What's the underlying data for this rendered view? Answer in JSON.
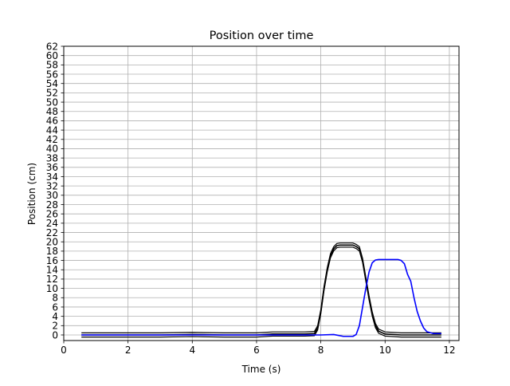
{
  "chart_data": {
    "type": "line",
    "title": "Position over time",
    "xlabel": "Time (s)",
    "ylabel": "Position (cm)",
    "xlim": [
      0,
      12.3
    ],
    "ylim": [
      -1.2,
      62
    ],
    "xticks": [
      0,
      2,
      4,
      6,
      8,
      10,
      12
    ],
    "yticks": [
      0,
      2,
      4,
      6,
      8,
      10,
      12,
      14,
      16,
      18,
      20,
      22,
      24,
      26,
      28,
      30,
      32,
      34,
      36,
      38,
      40,
      42,
      44,
      46,
      48,
      50,
      52,
      54,
      56,
      58,
      60,
      62
    ],
    "grid": true,
    "legend": "none",
    "colors": {
      "series_black": "#000000",
      "series_blue": "#0000ff",
      "grid": "#b0b0b0"
    },
    "series": [
      {
        "color": "#000000",
        "band": 0.45,
        "x": [
          0.55,
          1.0,
          2.0,
          3.0,
          4.0,
          5.0,
          6.0,
          6.5,
          7.0,
          7.5,
          7.8,
          7.9,
          8.0,
          8.1,
          8.2,
          8.3,
          8.4,
          8.5,
          8.6,
          8.8,
          9.0,
          9.1,
          9.2,
          9.3,
          9.4,
          9.5,
          9.6,
          9.7,
          9.8,
          10.0,
          10.5,
          11.0,
          11.5,
          11.75
        ],
        "y": [
          0,
          0,
          0,
          0,
          0.1,
          0,
          0,
          0.2,
          0.2,
          0.2,
          0.3,
          1.5,
          5,
          10,
          14,
          17,
          18.5,
          19.2,
          19.3,
          19.3,
          19.3,
          19,
          18.5,
          16,
          12,
          8,
          4.5,
          2,
          0.8,
          0.2,
          0,
          0,
          0,
          0
        ]
      },
      {
        "color": "#0000ff",
        "band": 0,
        "x": [
          0.55,
          1.0,
          2.0,
          3.0,
          4.0,
          5.0,
          6.0,
          7.0,
          8.0,
          8.4,
          8.7,
          9.0,
          9.1,
          9.2,
          9.3,
          9.4,
          9.5,
          9.6,
          9.7,
          9.8,
          9.9,
          10.0,
          10.2,
          10.4,
          10.5,
          10.6,
          10.7,
          10.8,
          10.9,
          11.0,
          11.1,
          11.2,
          11.3,
          11.5,
          11.75
        ],
        "y": [
          0,
          0,
          0,
          0,
          0,
          0,
          0,
          0,
          0,
          0.1,
          -0.3,
          -0.3,
          0.1,
          2,
          6,
          10,
          13.5,
          15.5,
          16.1,
          16.2,
          16.2,
          16.2,
          16.2,
          16.2,
          16,
          15.3,
          13,
          11.5,
          8,
          5,
          3,
          1.5,
          0.7,
          0.3,
          0.3
        ]
      }
    ]
  }
}
